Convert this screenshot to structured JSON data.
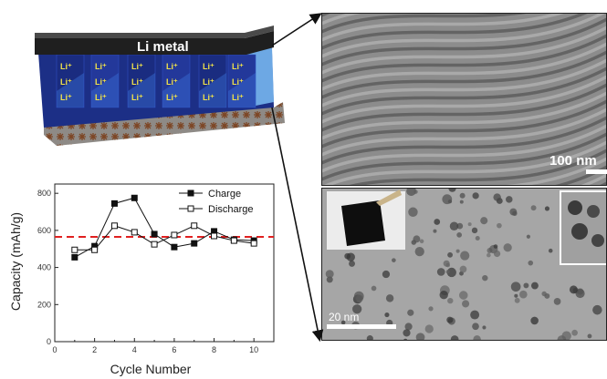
{
  "diagram": {
    "layer_label": "Li metal",
    "ion_label": "Li⁺",
    "colors": {
      "li_metal": "#2f2f2f",
      "block": "#1c2f86",
      "block_light": "#3a6fd8",
      "substrate": "#8e8a86"
    }
  },
  "tem": {
    "top_scale": "100 nm",
    "bottom_scale": "20 nm"
  },
  "chart_data": {
    "type": "line",
    "x": [
      1,
      2,
      3,
      4,
      5,
      6,
      7,
      8,
      9,
      10
    ],
    "series": [
      {
        "name": "Charge",
        "marker": "filled-square",
        "values": [
          455,
          515,
          745,
          775,
          580,
          510,
          530,
          595,
          550,
          545
        ]
      },
      {
        "name": "Discharge",
        "marker": "open-square",
        "values": [
          495,
          495,
          625,
          590,
          525,
          575,
          625,
          570,
          545,
          530
        ]
      }
    ],
    "reference_line": {
      "value": 565,
      "color": "#e02020",
      "style": "dashed"
    },
    "xlabel": "Cycle Number",
    "ylabel": "Capacity (mAh/g)",
    "xlim": [
      0,
      11
    ],
    "ylim": [
      0,
      850
    ],
    "xticks": [
      0,
      2,
      4,
      6,
      8,
      10
    ],
    "yticks": [
      0,
      200,
      400,
      600,
      800
    ],
    "legend_position": "top-right"
  }
}
